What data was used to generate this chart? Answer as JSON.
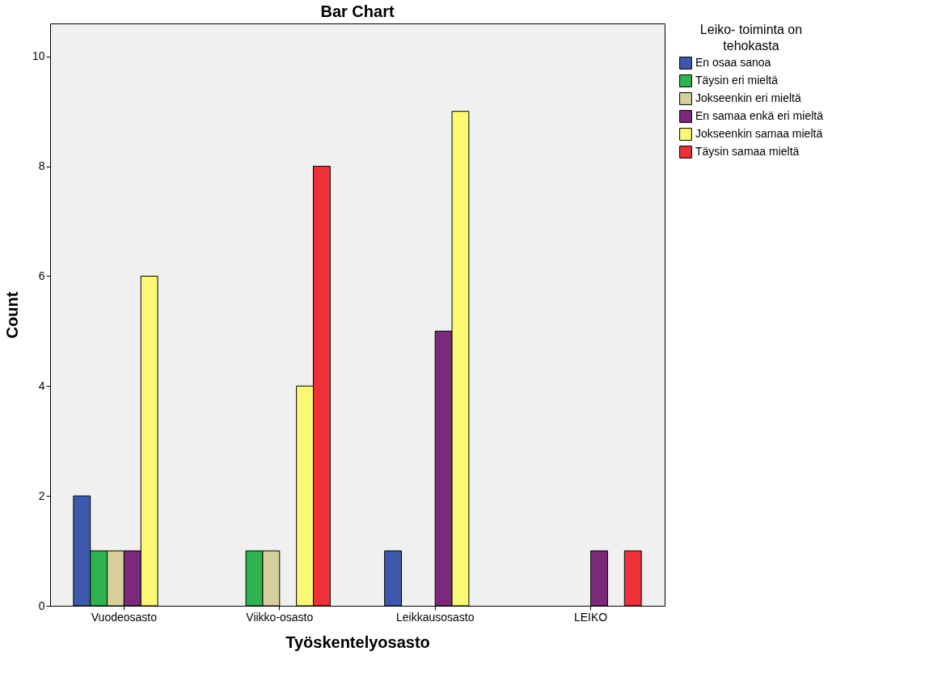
{
  "chart_data": {
    "type": "bar",
    "title": "Bar Chart",
    "xlabel": "Työskentelyosasto",
    "ylabel": "Count",
    "legend_title": "Leiko- toiminta on tehokasta",
    "categories": [
      "Vuodeosasto",
      "Viikko-osasto",
      "Leikkausosasto",
      "LEIKO"
    ],
    "series": [
      {
        "name": "En osaa sanoa",
        "color": "#3e58ac",
        "values": [
          2,
          null,
          1,
          null
        ]
      },
      {
        "name": "Täysin eri mieltä",
        "color": "#2eb34f",
        "values": [
          1,
          1,
          null,
          null
        ]
      },
      {
        "name": "Jokseenkin eri mieltä",
        "color": "#d6cf9c",
        "values": [
          1,
          1,
          null,
          null
        ]
      },
      {
        "name": "En samaa enkä eri mieltä",
        "color": "#7b2a7b",
        "values": [
          1,
          null,
          5,
          1
        ]
      },
      {
        "name": "Jokseenkin samaa mieltä",
        "color": "#fbf873",
        "values": [
          6,
          4,
          9,
          null
        ]
      },
      {
        "name": "Täysin samaa mieltä",
        "color": "#ef3038",
        "values": [
          null,
          8,
          null,
          1
        ]
      }
    ],
    "ylim": [
      0,
      10.6
    ],
    "yticks": [
      0,
      2,
      4,
      6,
      8,
      10
    ],
    "grid": false,
    "legend": "top right"
  }
}
